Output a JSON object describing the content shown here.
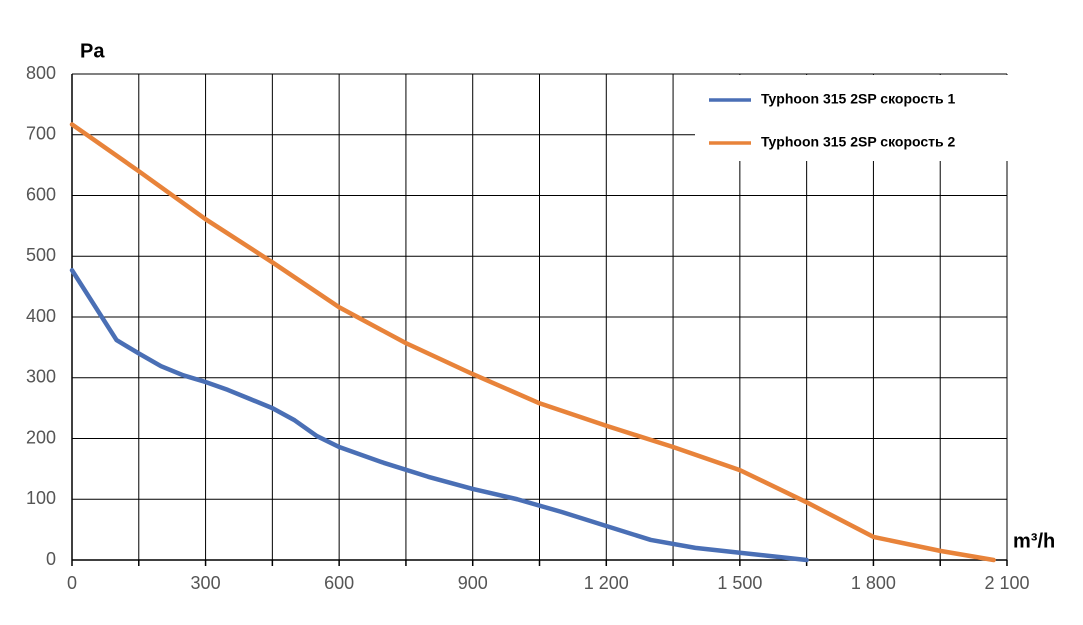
{
  "chart_data": {
    "type": "line",
    "y_label": "Pa",
    "x_label": "m³/h",
    "xlim": [
      0,
      2100
    ],
    "ylim": [
      0,
      800
    ],
    "xticks": [
      0,
      300,
      600,
      900,
      {
        "value": 1200,
        "label": "1 200"
      },
      {
        "value": 1500,
        "label": "1 500"
      },
      {
        "value": 1800,
        "label": "1 800"
      },
      {
        "value": 2100,
        "label": "2 100"
      }
    ],
    "xminor": [
      150,
      450,
      750,
      1050,
      1350,
      1650,
      1950
    ],
    "yticks": [
      0,
      100,
      200,
      300,
      400,
      500,
      600,
      700,
      800
    ],
    "grid": true,
    "legend": "upper right",
    "series": [
      {
        "name": "Typhoon 315 2SP скорость 1",
        "color": "#4a6fb5",
        "x": [
          0,
          100,
          150,
          200,
          250,
          300,
          350,
          400,
          450,
          500,
          550,
          600,
          700,
          800,
          900,
          1000,
          1100,
          1200,
          1300,
          1400,
          1500,
          1650
        ],
        "values": [
          477,
          362,
          340,
          319,
          304,
          293,
          280,
          265,
          250,
          230,
          204,
          186,
          160,
          137,
          117,
          100,
          79,
          56,
          33,
          20,
          12,
          0
        ]
      },
      {
        "name": "Typhoon 315 2SP скорость 2",
        "color": "#e8833a",
        "x": [
          0,
          150,
          300,
          450,
          600,
          750,
          900,
          1050,
          1200,
          1350,
          1500,
          1650,
          1800,
          1950,
          2070
        ],
        "values": [
          717,
          640,
          561,
          490,
          416,
          357,
          306,
          258,
          221,
          186,
          148,
          95,
          38,
          15,
          0
        ]
      }
    ]
  }
}
